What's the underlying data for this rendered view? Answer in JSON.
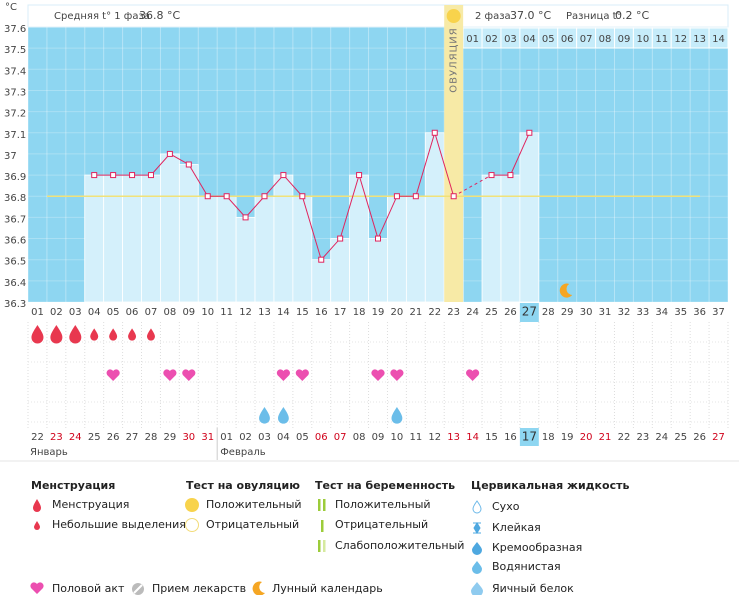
{
  "y_unit": "°C",
  "header": {
    "phase1": "Средняя t° 1 фаза",
    "phase1_value": "36.8 °C",
    "phase2": "2 фаза",
    "phase2_value": "37.0 °C",
    "diff": "Разница t°",
    "diff_value": "0.2 °C"
  },
  "ovulation_label": "ОВУЛЯЦИЯ",
  "chart_data": {
    "type": "line",
    "categories": [
      "01",
      "02",
      "03",
      "04",
      "05",
      "06",
      "07",
      "08",
      "09",
      "10",
      "11",
      "12",
      "13",
      "14",
      "15",
      "16",
      "17",
      "18",
      "19",
      "20",
      "21",
      "22",
      "23",
      "24",
      "25",
      "26",
      "27",
      "28",
      "29",
      "30",
      "31",
      "32",
      "33",
      "34",
      "35",
      "36",
      "37"
    ],
    "values": [
      null,
      null,
      null,
      36.9,
      36.9,
      36.9,
      36.9,
      37.0,
      36.95,
      36.8,
      36.8,
      36.7,
      36.8,
      36.9,
      36.8,
      36.5,
      36.6,
      36.9,
      36.6,
      36.8,
      36.8,
      37.1,
      36.8,
      null,
      36.9,
      36.9,
      37.1,
      null,
      null,
      null,
      null,
      null,
      null,
      null,
      null,
      null,
      null
    ],
    "color": "#e0245e",
    "bar_color": "#d4f0fb",
    "background": "#8ed6f1",
    "ylim": [
      36.3,
      37.6
    ],
    "yticks": [
      36.3,
      36.4,
      36.5,
      36.6,
      36.7,
      36.8,
      36.9,
      {
        "value": 37,
        "label": "37"
      },
      37.1,
      37.2,
      37.3,
      37.4,
      37.5,
      37.6
    ],
    "coverline": 36.8,
    "ovulation_day": "23",
    "today": "27",
    "luteal_days": [
      "01",
      "02",
      "03",
      "04",
      "05",
      "06",
      "07",
      "08",
      "09",
      "10",
      "11",
      "12",
      "13",
      "14"
    ],
    "dates": [
      "22",
      "23",
      "24",
      "25",
      "26",
      "27",
      "28",
      "29",
      "30",
      "31",
      "01",
      "02",
      "03",
      "04",
      "05",
      "06",
      "07",
      "08",
      "09",
      "10",
      "11",
      "12",
      "13",
      "14",
      "15",
      "16",
      "17",
      "18",
      "19",
      "20",
      "21",
      "22",
      "23",
      "24",
      "25",
      "26",
      "27"
    ],
    "weekend": [
      false,
      true,
      true,
      false,
      false,
      false,
      false,
      false,
      true,
      true,
      false,
      false,
      false,
      false,
      false,
      true,
      true,
      false,
      false,
      false,
      false,
      false,
      true,
      true,
      false,
      false,
      false,
      false,
      false,
      true,
      true,
      false,
      false,
      false,
      false,
      false,
      true
    ],
    "months": [
      "Январь",
      "Февраль"
    ],
    "menstruation_heavy": [
      "01",
      "02",
      "03"
    ],
    "menstruation_light": [
      "04",
      "05",
      "06",
      "07"
    ],
    "intercourse": [
      "05",
      "08",
      "09",
      "14",
      "15",
      "19",
      "20",
      "24"
    ],
    "cervical_watery": [
      "13",
      "14",
      "20"
    ],
    "lunar": [
      "29"
    ]
  },
  "legend": {
    "menstruation": {
      "title": "Менструация",
      "items": [
        "Менструация",
        "Небольшие выделения"
      ]
    },
    "ovulation_test": {
      "title": "Тест на овуляцию",
      "items": [
        "Положительный",
        "Отрицательный"
      ]
    },
    "pregnancy_test": {
      "title": "Тест на беременность",
      "items": [
        "Положительный",
        "Отрицательный",
        "Слабоположительный"
      ]
    },
    "cervical": {
      "title": "Цервикальная жидкость",
      "items": [
        "Сухо",
        "Клейкая",
        "Кремообразная",
        "Водянистая",
        "Яичный белок"
      ]
    },
    "other": [
      "Половой акт",
      "Прием лекарств",
      "Лунный календарь"
    ]
  }
}
